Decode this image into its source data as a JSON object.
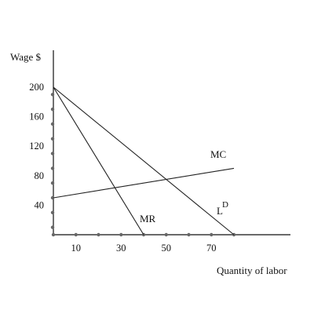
{
  "chart_data": {
    "type": "line",
    "title": "",
    "xlabel": "Quantity of labor",
    "ylabel": "Wage $",
    "xlim": [
      -10,
      100
    ],
    "ylim": [
      0,
      240
    ],
    "x_ticks": [
      10,
      30,
      50,
      70
    ],
    "y_ticks": [
      40,
      80,
      120,
      160,
      200
    ],
    "x_dot_positions": [
      0,
      10,
      20,
      30,
      40,
      50,
      60,
      70,
      80
    ],
    "y_dot_positions": [
      10,
      30,
      50,
      70,
      90,
      110,
      130,
      150,
      170,
      190
    ],
    "series": [
      {
        "name": "LD",
        "label": "L",
        "label_sup": "D",
        "x": [
          0,
          80
        ],
        "y": [
          200,
          0
        ]
      },
      {
        "name": "MR",
        "label": "MR",
        "x": [
          0,
          40
        ],
        "y": [
          200,
          0
        ]
      },
      {
        "name": "MC",
        "label": "MC",
        "x": [
          0,
          80
        ],
        "y": [
          50,
          90
        ]
      }
    ],
    "grid": false,
    "legend": "none",
    "colors": {
      "line": "#222222",
      "axis": "#111111",
      "dots": "#666666"
    }
  }
}
